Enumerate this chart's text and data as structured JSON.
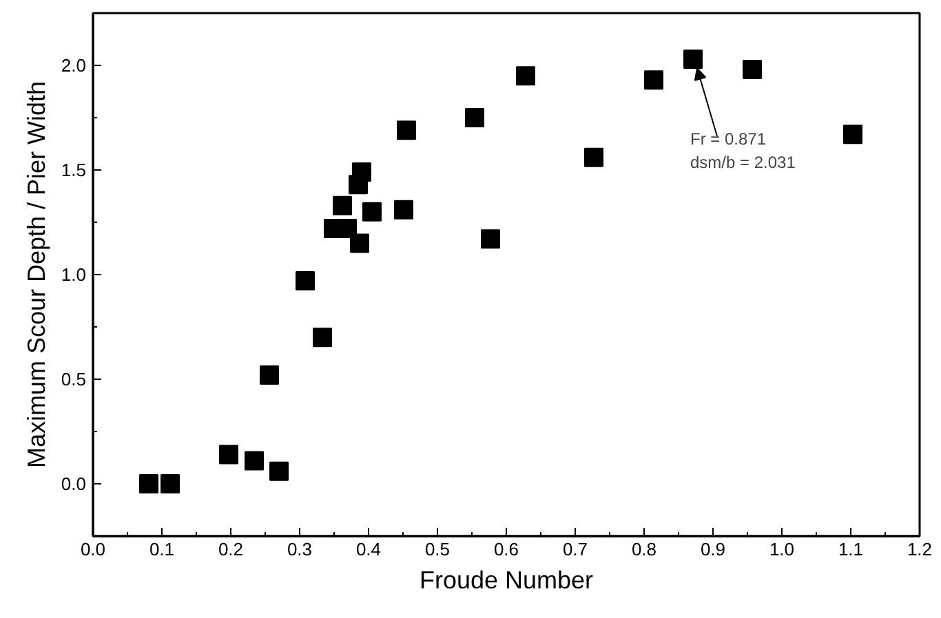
{
  "chart_data": {
    "type": "scatter",
    "xlabel": "Froude Number",
    "ylabel": "Maximum Scour Depth / Pier Width",
    "x": [
      0.081,
      0.112,
      0.197,
      0.234,
      0.27,
      0.256,
      0.308,
      0.333,
      0.349,
      0.369,
      0.362,
      0.387,
      0.385,
      0.39,
      0.405,
      0.451,
      0.455,
      0.554,
      0.577,
      0.628,
      0.727,
      0.814,
      0.871,
      0.957,
      1.103
    ],
    "series": [
      {
        "color": "#000000",
        "values": [
          0.0,
          0.0,
          0.14,
          0.11,
          0.06,
          0.52,
          0.97,
          0.7,
          1.22,
          1.22,
          1.33,
          1.15,
          1.43,
          1.49,
          1.3,
          1.31,
          1.69,
          1.75,
          1.17,
          1.95,
          1.56,
          1.93,
          2.03,
          1.98,
          1.67
        ]
      }
    ],
    "marker": "square",
    "xlim": [
      0.0,
      1.2
    ],
    "xticks": [
      {
        "value": 0.0,
        "label": "0.0"
      },
      0.1,
      0.2,
      0.3,
      0.4,
      0.5,
      0.6,
      0.7,
      0.8,
      0.9,
      {
        "value": 1.0,
        "label": "1.0"
      },
      1.1,
      1.2
    ],
    "ylim": [
      -0.25,
      2.25
    ],
    "yticks": [
      {
        "value": 0.0,
        "label": "0.0"
      },
      0.5,
      {
        "value": 1.0,
        "label": "1.0"
      },
      1.5,
      {
        "value": 2.0,
        "label": "2.0"
      }
    ],
    "annotations": [
      {
        "text": "Fr = 0.871\ndsm/b = 2.031",
        "x": 0.871,
        "y": 2.031
      }
    ],
    "grid": false
  }
}
